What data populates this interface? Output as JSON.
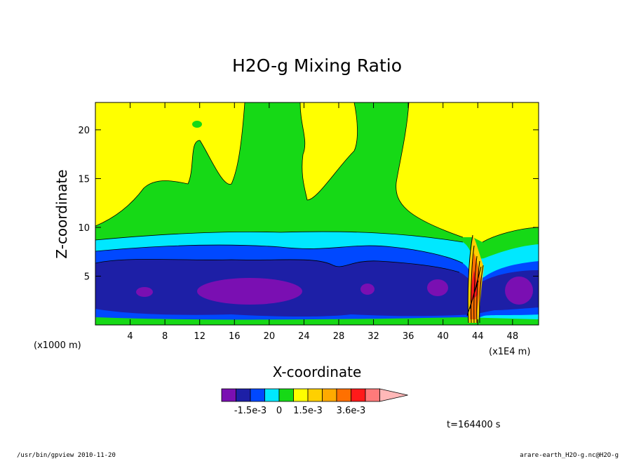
{
  "chart_data": {
    "type": "heatmap",
    "title": "H2O-g Mixing Ratio",
    "xlabel": "X-coordinate",
    "ylabel": "Z-coordinate",
    "x_unit": "(x1E4 m)",
    "y_unit": "(x1000 m)",
    "xlim": [
      0,
      51
    ],
    "ylim": [
      0,
      22.8
    ],
    "x_ticks": [
      4,
      8,
      12,
      16,
      20,
      24,
      28,
      32,
      36,
      40,
      44,
      48
    ],
    "x_tick_labels": [
      "4",
      "8",
      "12",
      "16",
      "20",
      "24",
      "28",
      "32",
      "36",
      "40",
      "44",
      "48"
    ],
    "y_ticks": [
      5,
      10,
      15,
      20
    ],
    "y_tick_labels": [
      "5",
      "10",
      "15",
      "20"
    ],
    "colorbar": {
      "colors": [
        "#7a0fb2",
        "#1d1fa6",
        "#0048ff",
        "#00e8ff",
        "#16d916",
        "#ffff00",
        "#ffd000",
        "#ffaa00",
        "#ff7000",
        "#ff1a1a",
        "#ff7a7a",
        "#ffb8b8"
      ],
      "tick_labels": [
        "-1.5e-3",
        "0",
        "1.5e-3",
        "3.6e-3"
      ],
      "tick_boundaries": [
        2,
        4,
        6,
        9
      ]
    },
    "time_label": "t=164400 s"
  },
  "footer": {
    "left": "/usr/bin/gpview  2010-11-20",
    "right": "arare-earth_H2O-g.nc@H2O-g"
  }
}
